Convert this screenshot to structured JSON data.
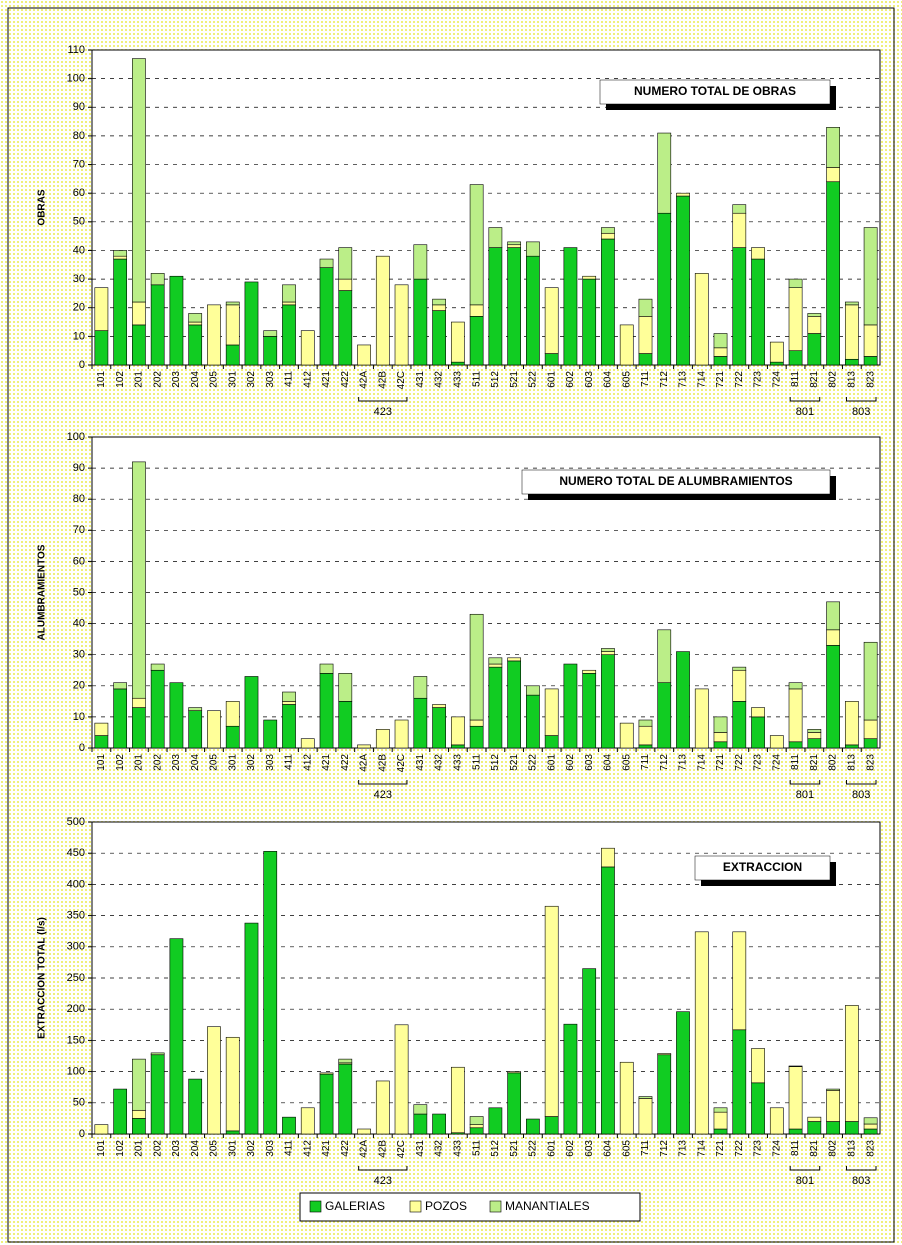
{
  "chart_data": [
    {
      "type": "bar",
      "stacked": true,
      "title": "NUMERO TOTAL DE OBRAS",
      "y_label": "OBRAS",
      "categories": [
        "101",
        "102",
        "201",
        "202",
        "203",
        "204",
        "205",
        "301",
        "302",
        "303",
        "411",
        "412",
        "421",
        "422",
        "42A",
        "42B",
        "42C",
        "431",
        "432",
        "433",
        "511",
        "512",
        "521",
        "522",
        "601",
        "602",
        "603",
        "604",
        "605",
        "711",
        "712",
        "713",
        "714",
        "721",
        "722",
        "723",
        "724",
        "811",
        "821",
        "802",
        "813",
        "823"
      ],
      "groups": [
        {
          "label": "423",
          "members": [
            "42A",
            "42B",
            "42C"
          ]
        },
        {
          "label": "801",
          "members": [
            "811",
            "821"
          ]
        },
        {
          "label": "803",
          "members": [
            "813",
            "823"
          ]
        }
      ],
      "series": [
        {
          "values": [
            12,
            37,
            14,
            28,
            31,
            14,
            0,
            7,
            29,
            10,
            21,
            0,
            34,
            26,
            0,
            0,
            0,
            30,
            19,
            1,
            17,
            41,
            41,
            38,
            4,
            41,
            30,
            44,
            0,
            4,
            53,
            59,
            0,
            3,
            41,
            37,
            1,
            5,
            11,
            64,
            2,
            3
          ]
        },
        {
          "values": [
            15,
            1,
            8,
            0,
            0,
            1,
            21,
            14,
            0,
            0,
            1,
            12,
            0,
            4,
            7,
            38,
            28,
            0,
            2,
            14,
            4,
            0,
            1,
            0,
            23,
            0,
            1,
            2,
            14,
            13,
            0,
            1,
            32,
            3,
            12,
            4,
            7,
            22,
            6,
            5,
            19,
            11
          ]
        },
        {
          "values": [
            0,
            2,
            85,
            4,
            0,
            3,
            0,
            1,
            0,
            2,
            6,
            0,
            3,
            11,
            0,
            0,
            0,
            12,
            2,
            0,
            42,
            7,
            1,
            5,
            0,
            0,
            0,
            2,
            0,
            6,
            28,
            0,
            0,
            5,
            3,
            0,
            0,
            3,
            1,
            14,
            1,
            34
          ]
        }
      ],
      "ylim": [
        0,
        110
      ],
      "yticks": [
        0,
        10,
        20,
        30,
        40,
        50,
        60,
        70,
        80,
        90,
        100,
        110
      ],
      "grid": true
    },
    {
      "type": "bar",
      "stacked": true,
      "title": "NUMERO TOTAL DE ALUMBRAMIENTOS",
      "y_label": "ALUMBRAMIENTOS",
      "categories": [
        "101",
        "102",
        "201",
        "202",
        "203",
        "204",
        "205",
        "301",
        "302",
        "303",
        "411",
        "412",
        "421",
        "422",
        "42A",
        "42B",
        "42C",
        "431",
        "432",
        "433",
        "511",
        "512",
        "521",
        "522",
        "601",
        "602",
        "603",
        "604",
        "605",
        "711",
        "712",
        "713",
        "714",
        "721",
        "722",
        "723",
        "724",
        "811",
        "821",
        "802",
        "813",
        "823"
      ],
      "groups": [
        {
          "label": "423",
          "members": [
            "42A",
            "42B",
            "42C"
          ]
        },
        {
          "label": "801",
          "members": [
            "811",
            "821"
          ]
        },
        {
          "label": "803",
          "members": [
            "813",
            "823"
          ]
        }
      ],
      "series": [
        {
          "values": [
            4,
            19,
            13,
            25,
            21,
            12,
            0,
            7,
            23,
            9,
            14,
            0,
            24,
            15,
            0,
            0,
            0,
            16,
            13,
            1,
            7,
            26,
            28,
            17,
            4,
            27,
            24,
            30,
            0,
            1,
            21,
            31,
            0,
            2,
            15,
            10,
            0,
            2,
            3,
            33,
            1,
            3
          ]
        },
        {
          "values": [
            4,
            0,
            3,
            0,
            0,
            0,
            12,
            8,
            0,
            0,
            1,
            3,
            0,
            0,
            1,
            6,
            9,
            0,
            1,
            9,
            2,
            1,
            1,
            0,
            15,
            0,
            1,
            1,
            8,
            6,
            0,
            0,
            19,
            3,
            10,
            3,
            4,
            17,
            2,
            5,
            14,
            6
          ]
        },
        {
          "values": [
            0,
            2,
            76,
            2,
            0,
            1,
            0,
            0,
            0,
            0,
            3,
            0,
            3,
            9,
            0,
            0,
            0,
            7,
            0,
            0,
            34,
            2,
            0,
            3,
            0,
            0,
            0,
            1,
            0,
            2,
            17,
            0,
            0,
            5,
            1,
            0,
            0,
            2,
            1,
            9,
            0,
            25
          ]
        }
      ],
      "ylim": [
        0,
        100
      ],
      "yticks": [
        0,
        10,
        20,
        30,
        40,
        50,
        60,
        70,
        80,
        90,
        100
      ],
      "grid": true
    },
    {
      "type": "bar",
      "stacked": true,
      "title": "EXTRACCION",
      "y_label": "EXTRACCION TOTAL (l/s)",
      "categories": [
        "101",
        "102",
        "201",
        "202",
        "203",
        "204",
        "205",
        "301",
        "302",
        "303",
        "411",
        "412",
        "421",
        "422",
        "42A",
        "42B",
        "42C",
        "431",
        "432",
        "433",
        "511",
        "512",
        "521",
        "522",
        "601",
        "602",
        "603",
        "604",
        "605",
        "711",
        "712",
        "713",
        "714",
        "721",
        "722",
        "723",
        "724",
        "811",
        "821",
        "802",
        "813",
        "823"
      ],
      "groups": [
        {
          "label": "423",
          "members": [
            "42A",
            "42B",
            "42C"
          ]
        },
        {
          "label": "801",
          "members": [
            "811",
            "821"
          ]
        },
        {
          "label": "803",
          "members": [
            "813",
            "823"
          ]
        }
      ],
      "series": [
        {
          "values": [
            0,
            72,
            25,
            127,
            313,
            88,
            0,
            5,
            338,
            453,
            27,
            0,
            96,
            112,
            0,
            0,
            0,
            32,
            32,
            2,
            10,
            42,
            98,
            24,
            28,
            176,
            265,
            428,
            0,
            0,
            127,
            196,
            0,
            8,
            167,
            82,
            0,
            8,
            20,
            20,
            20,
            8
          ]
        },
        {
          "values": [
            15,
            0,
            13,
            0,
            0,
            0,
            172,
            150,
            0,
            0,
            0,
            42,
            2,
            2,
            8,
            85,
            175,
            0,
            0,
            105,
            5,
            0,
            2,
            0,
            337,
            0,
            0,
            30,
            115,
            57,
            2,
            0,
            324,
            27,
            157,
            55,
            42,
            100,
            7,
            50,
            186,
            8
          ]
        },
        {
          "values": [
            0,
            0,
            82,
            3,
            0,
            0,
            0,
            0,
            0,
            0,
            0,
            0,
            0,
            6,
            0,
            0,
            0,
            15,
            0,
            0,
            13,
            0,
            0,
            0,
            0,
            0,
            0,
            0,
            0,
            3,
            0,
            0,
            0,
            7,
            0,
            0,
            0,
            1,
            0,
            2,
            0,
            10
          ]
        }
      ],
      "ylim": [
        0,
        500
      ],
      "yticks": [
        0,
        50,
        100,
        150,
        200,
        250,
        300,
        350,
        400,
        450,
        500
      ],
      "grid": true
    }
  ],
  "legend": [
    {
      "name": "GALERIAS",
      "color": "#11cc22"
    },
    {
      "name": "POZOS",
      "color": "#ffff99"
    },
    {
      "name": "MANANTIALES",
      "color": "#bbee88"
    }
  ]
}
